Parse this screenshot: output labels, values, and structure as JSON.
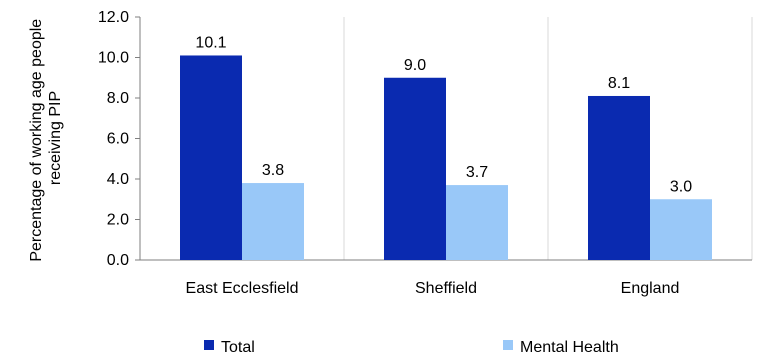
{
  "chart_data": {
    "type": "bar",
    "categories": [
      "East Ecclesfield",
      "Sheffield",
      "England"
    ],
    "series": [
      {
        "name": "Total",
        "values": [
          10.1,
          9.0,
          8.1
        ],
        "labels": [
          "10.1",
          "9.0",
          "8.1"
        ],
        "color": "#0a2ab0"
      },
      {
        "name": "Mental Health",
        "values": [
          3.8,
          3.7,
          3.0
        ],
        "labels": [
          "3.8",
          "3.7",
          "3.0"
        ],
        "color": "#99c8f8"
      }
    ],
    "ylabel_lines": [
      "Percentage of working age people",
      "receiving PIP"
    ],
    "ylim": [
      0,
      12
    ],
    "yticks": [
      "0.0",
      "2.0",
      "4.0",
      "6.0",
      "8.0",
      "10.0",
      "12.0"
    ],
    "grid": "vertical category separators",
    "legend": "bottom"
  }
}
